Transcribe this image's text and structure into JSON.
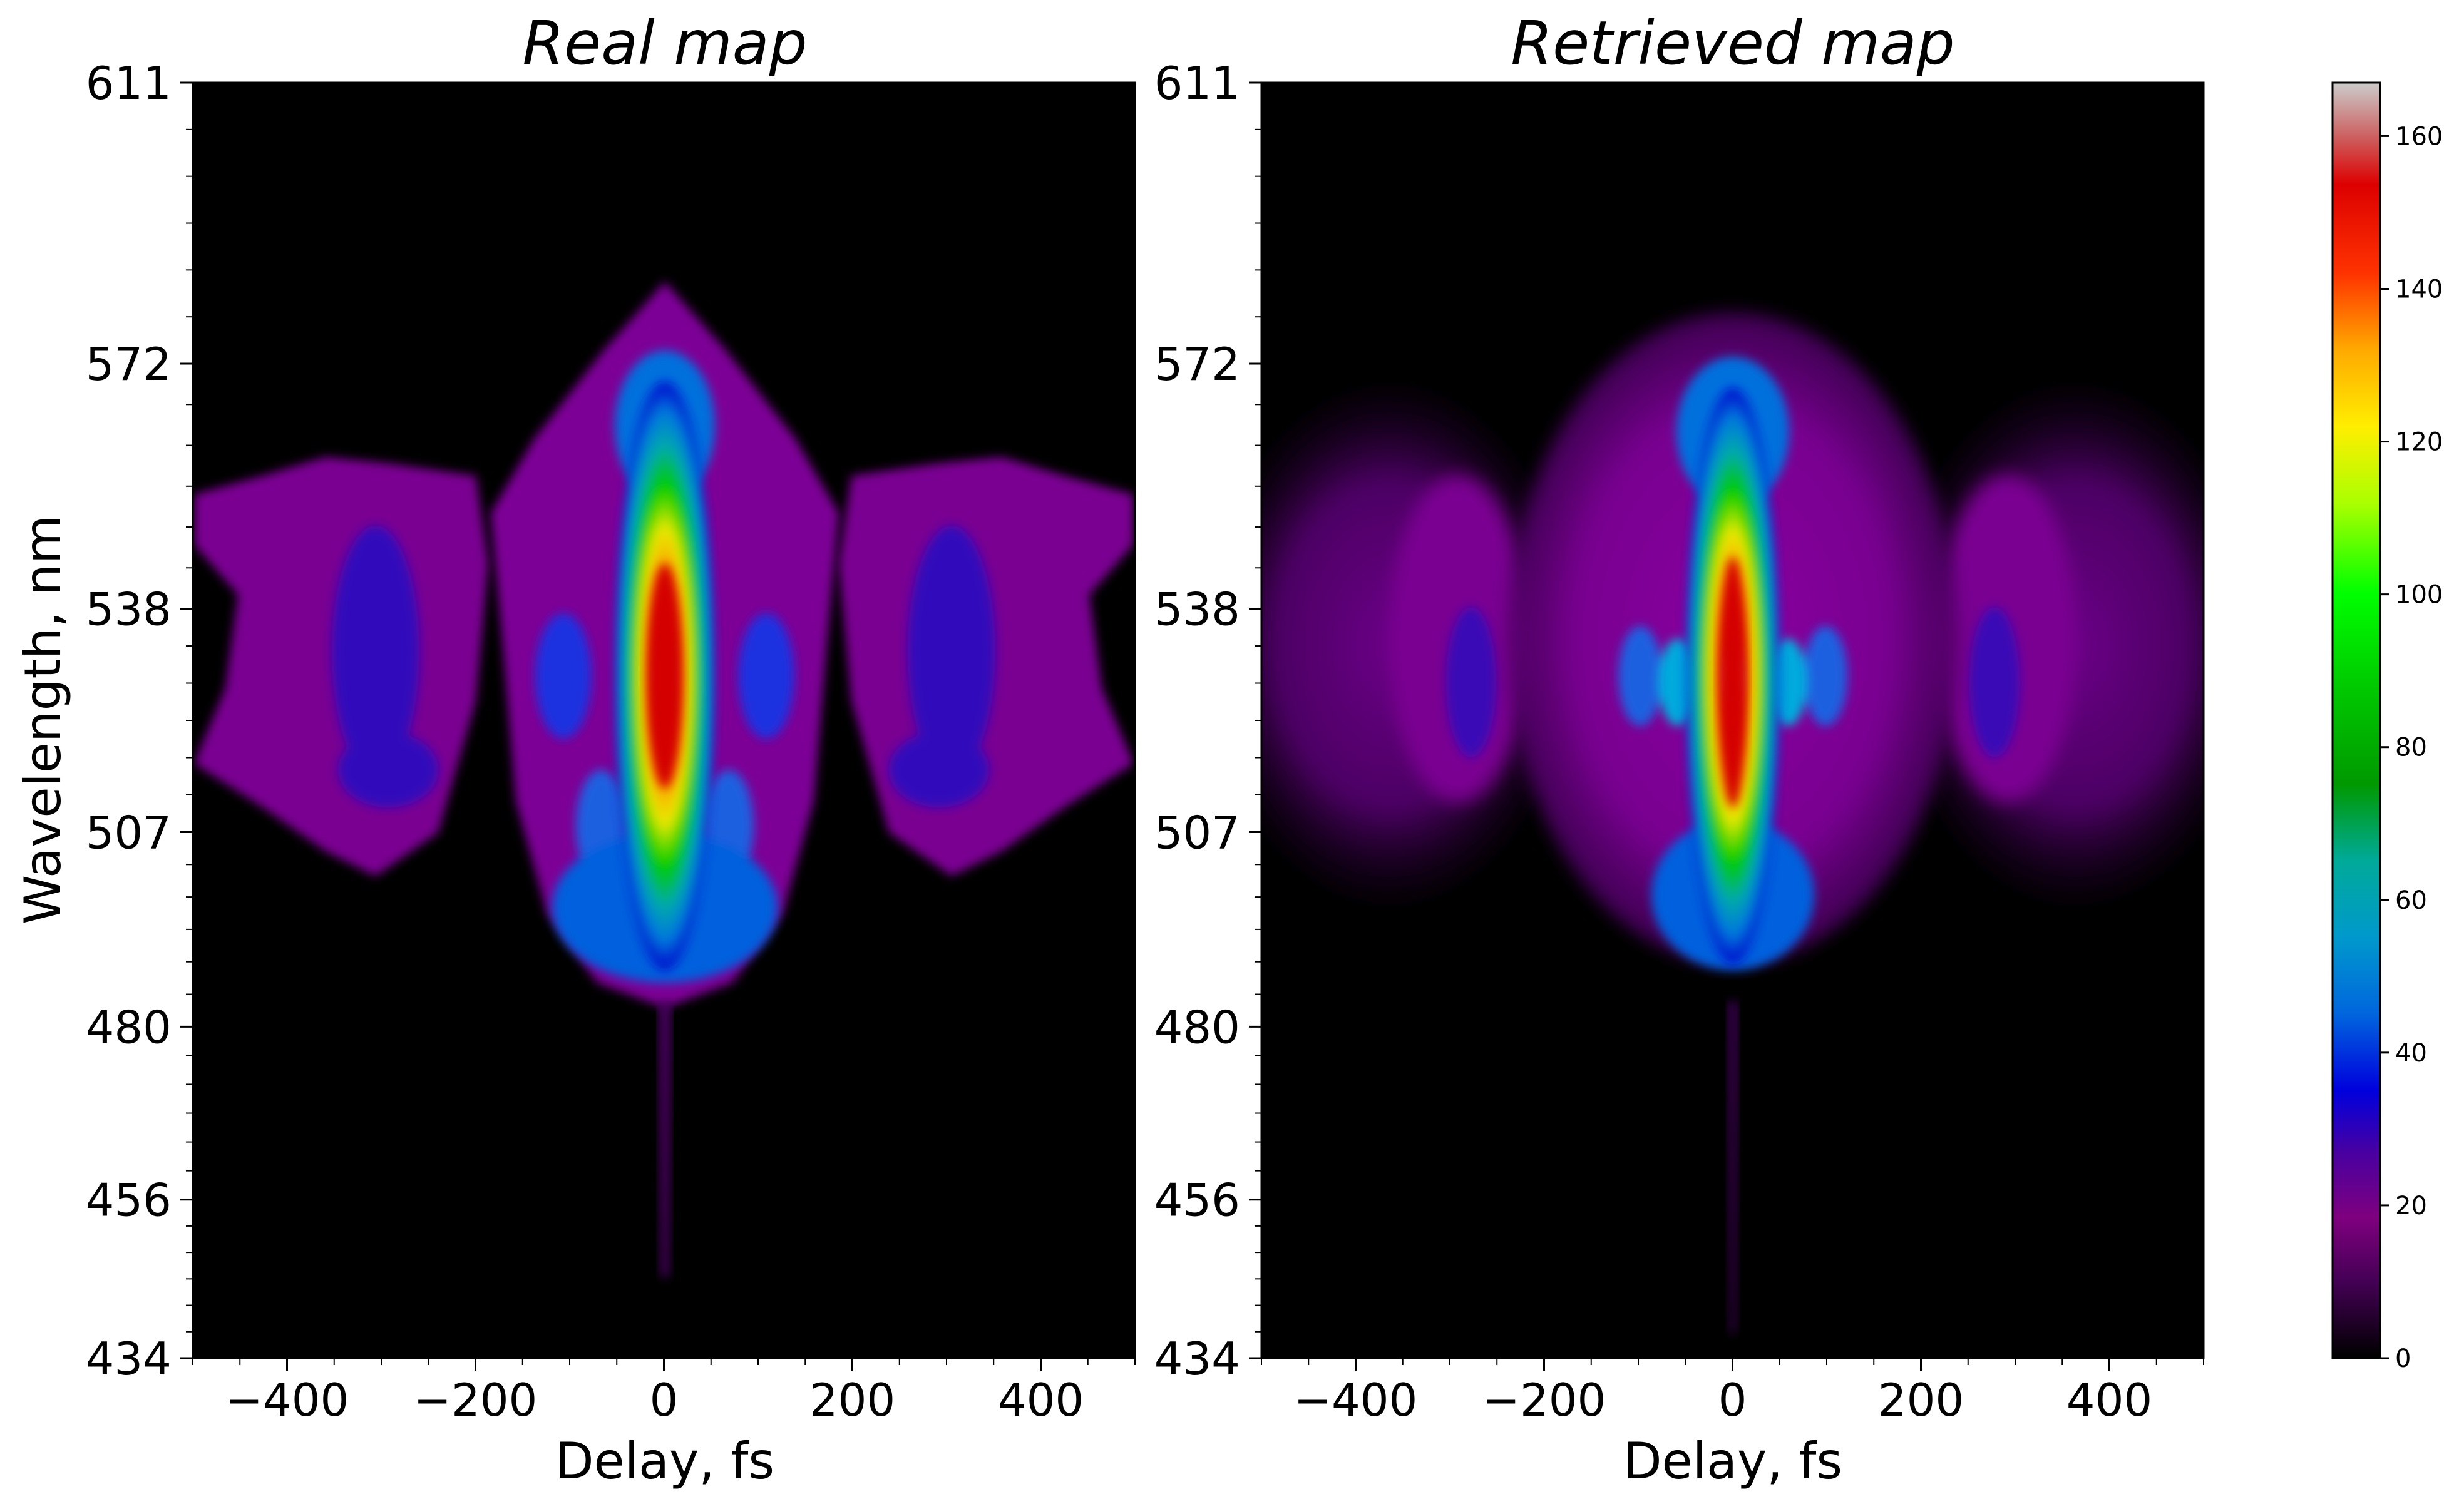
{
  "chart_data": [
    {
      "type": "heatmap",
      "title": "Real map",
      "xlabel": "Delay, fs",
      "ylabel": "Wavelength, nm",
      "xlim": [
        -500,
        500
      ],
      "ylim": [
        434,
        611
      ],
      "xticks": [
        -400,
        -200,
        0,
        200,
        400
      ],
      "xtick_labels": [
        "−400",
        "−200",
        "0",
        "200",
        "400"
      ],
      "yticks": [
        434,
        456,
        480,
        507,
        538,
        572,
        611
      ],
      "ytick_labels": [
        "434",
        "456",
        "480",
        "507",
        "538",
        "572",
        "611"
      ],
      "colormap": "nipy_spectral",
      "background_color": "#000000",
      "features": {
        "central_peak": {
          "delay": 0,
          "wavelength_center": 512,
          "wavelength_extent": [
            478,
            560
          ],
          "max_intensity": 165
        },
        "side_lobes": [
          {
            "delay_center": -290,
            "wavelength_extent": [
              493,
              542
            ],
            "intensity": 25
          },
          {
            "delay_center": 290,
            "wavelength_extent": [
              493,
              542
            ],
            "intensity": 25
          }
        ],
        "tail_down_to_wavelength": 447
      }
    },
    {
      "type": "heatmap",
      "title": "Retrieved map",
      "xlabel": "Delay, fs",
      "ylabel": "",
      "xlim": [
        -500,
        500
      ],
      "ylim": [
        434,
        611
      ],
      "xticks": [
        -400,
        -200,
        0,
        200,
        400
      ],
      "xtick_labels": [
        "−400",
        "−200",
        "0",
        "200",
        "400"
      ],
      "yticks": [
        434,
        456,
        480,
        507,
        538,
        572,
        611
      ],
      "ytick_labels": [
        "434",
        "456",
        "480",
        "507",
        "538",
        "572",
        "611"
      ],
      "colormap": "nipy_spectral",
      "background_color": "#000000",
      "features": {
        "central_peak": {
          "delay": 0,
          "wavelength_center": 512,
          "wavelength_extent": [
            478,
            560
          ],
          "max_intensity": 165
        },
        "side_lobes": [
          {
            "delay_center": -290,
            "wavelength_extent": [
              490,
              545
            ],
            "intensity": 22
          },
          {
            "delay_center": 290,
            "wavelength_extent": [
              490,
              545
            ],
            "intensity": 22
          }
        ],
        "tail_down_to_wavelength": 440
      }
    },
    {
      "type": "colorbar",
      "range": [
        0,
        167
      ],
      "ticks": [
        0,
        20,
        40,
        60,
        80,
        100,
        120,
        140,
        160
      ],
      "tick_labels": [
        "0",
        "20",
        "40",
        "60",
        "80",
        "100",
        "120",
        "140",
        "160"
      ],
      "colormap": "nipy_spectral"
    }
  ]
}
